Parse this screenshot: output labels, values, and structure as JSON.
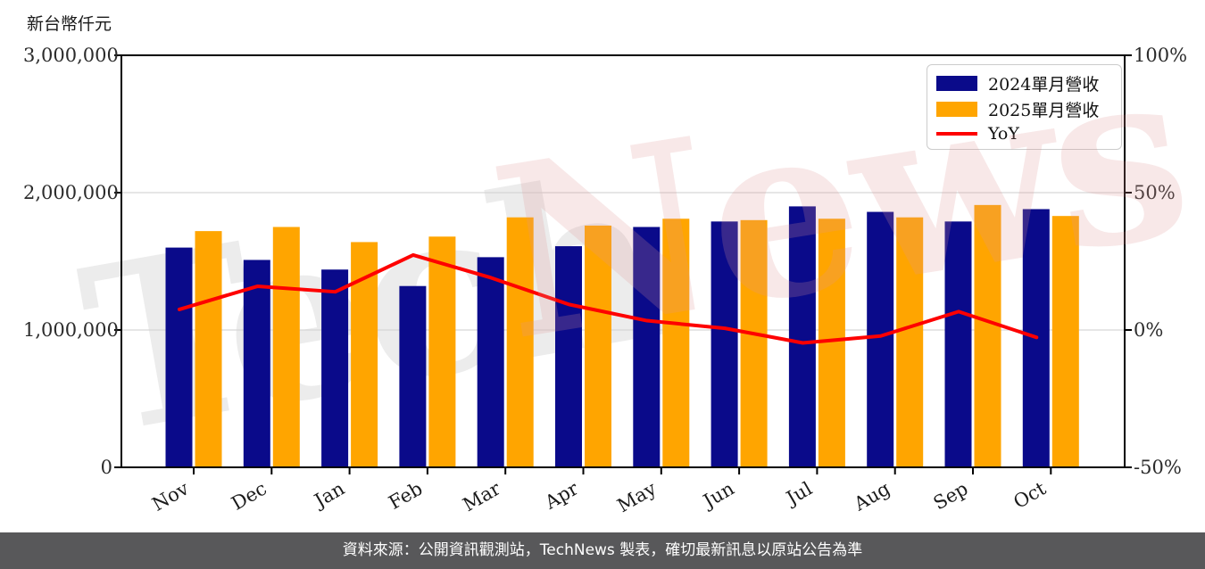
{
  "watermark": {
    "gray_text": "Tech",
    "pink_text": "News"
  },
  "footer": {
    "source_text": "資料來源：公開資訊觀測站，TechNews 製表，確切最新訊息以原站公告為準"
  },
  "chart_data": {
    "type": "bar",
    "subtype": "grouped bars with line overlay on secondary axis",
    "categories": [
      "Nov",
      "Dec",
      "Jan",
      "Feb",
      "Mar",
      "Apr",
      "May",
      "Jun",
      "Jul",
      "Aug",
      "Sep",
      "Oct"
    ],
    "series": [
      {
        "name": "2024單月營收",
        "type": "bar",
        "axis": "left",
        "color": "#0a0a8a",
        "values": [
          1600000,
          1510000,
          1440000,
          1320000,
          1530000,
          1610000,
          1750000,
          1790000,
          1900000,
          1860000,
          1790000,
          1880000
        ]
      },
      {
        "name": "2025單月營收",
        "type": "bar",
        "axis": "left",
        "color": "#ffa500",
        "values": [
          1720000,
          1750000,
          1640000,
          1680000,
          1820000,
          1760000,
          1810000,
          1800000,
          1810000,
          1820000,
          1910000,
          1830000
        ]
      },
      {
        "name": "YoY",
        "type": "line",
        "axis": "right",
        "color": "#fe0000",
        "unit": "%",
        "values": [
          7.5,
          15.9,
          13.9,
          27.3,
          19.0,
          9.3,
          3.4,
          0.6,
          -4.7,
          -2.2,
          6.7,
          -2.7
        ]
      }
    ],
    "left_axis": {
      "unit": "新台幣仟元",
      "min": 0,
      "max": 3000000,
      "tick_labels": [
        "3,000,000",
        "2,000,000",
        "1,000,000",
        "0"
      ],
      "tick_values": [
        3000000,
        2000000,
        1000000,
        0
      ],
      "gridline_values": [
        1000000,
        2000000
      ]
    },
    "right_axis": {
      "min": -50,
      "max": 100,
      "tick_labels": [
        "100%",
        "50%",
        "0%",
        "-50%"
      ],
      "tick_values": [
        100,
        50,
        0,
        -50
      ]
    },
    "legend": {
      "position": "top-right"
    },
    "grid": true
  }
}
